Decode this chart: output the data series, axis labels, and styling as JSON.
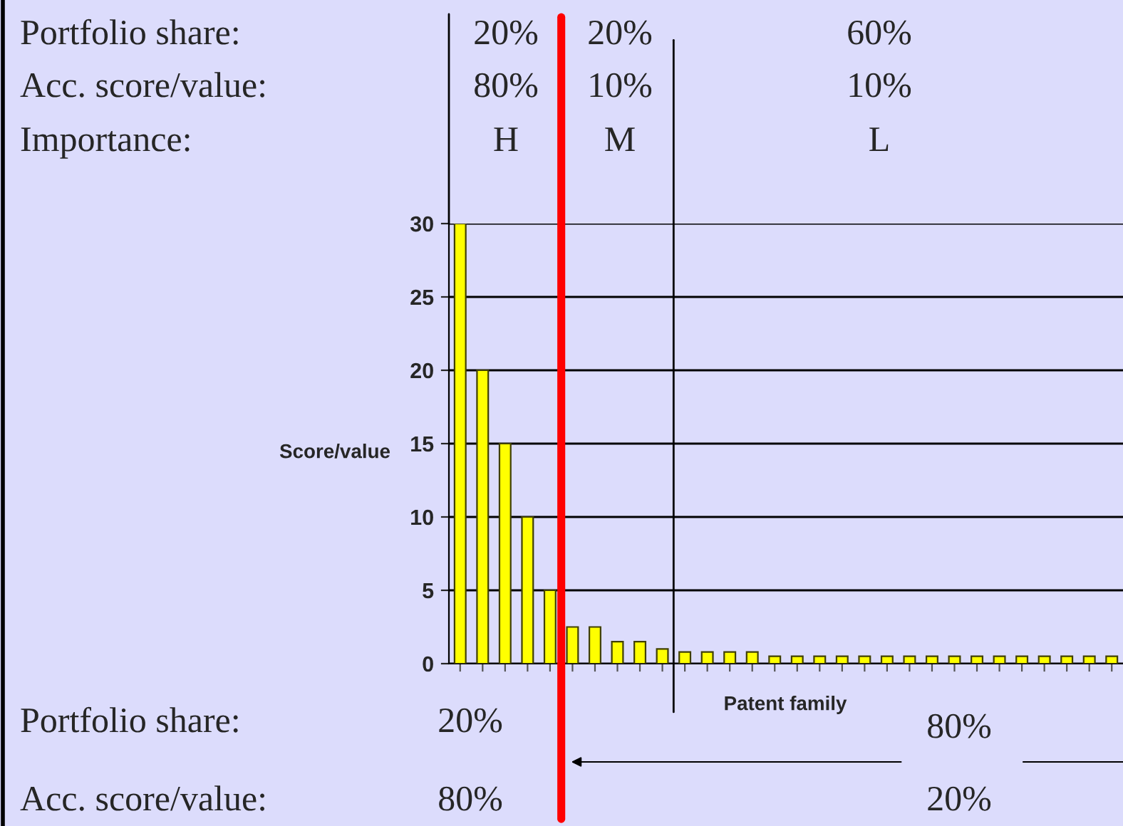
{
  "chart_data": {
    "type": "bar",
    "xlabel": "Patent family",
    "ylabel": "Score/value",
    "categories": [
      null,
      null,
      null,
      null,
      null,
      null,
      null,
      null,
      null,
      null,
      null,
      null,
      null,
      null,
      null,
      null,
      null,
      null,
      null,
      null,
      null,
      null,
      null,
      null,
      null,
      null,
      null,
      null,
      null,
      null
    ],
    "values": [
      30,
      20,
      15,
      10,
      5,
      2.5,
      2.5,
      1.5,
      1.5,
      1,
      0.8,
      0.8,
      0.8,
      0.8,
      0.5,
      0.5,
      0.5,
      0.5,
      0.5,
      0.5,
      0.5,
      0.5,
      0.5,
      0.5,
      0.5,
      0.5,
      0.5,
      0.5,
      0.5,
      0.5
    ],
    "color": "#ffff00",
    "ylim": [
      0,
      30
    ],
    "yticks": [
      0,
      5,
      10,
      15,
      20,
      25,
      30
    ],
    "grid": "y",
    "annotations": [
      "Portfolio share:",
      "20%",
      "20%",
      "60%",
      "Acc. score/value:",
      "80%",
      "10%",
      "10%",
      "Importance:",
      "H",
      "M",
      "L",
      "Portfolio share:",
      "20%",
      "80%",
      "Acc. score/value:",
      "80%",
      "20%"
    ]
  }
}
